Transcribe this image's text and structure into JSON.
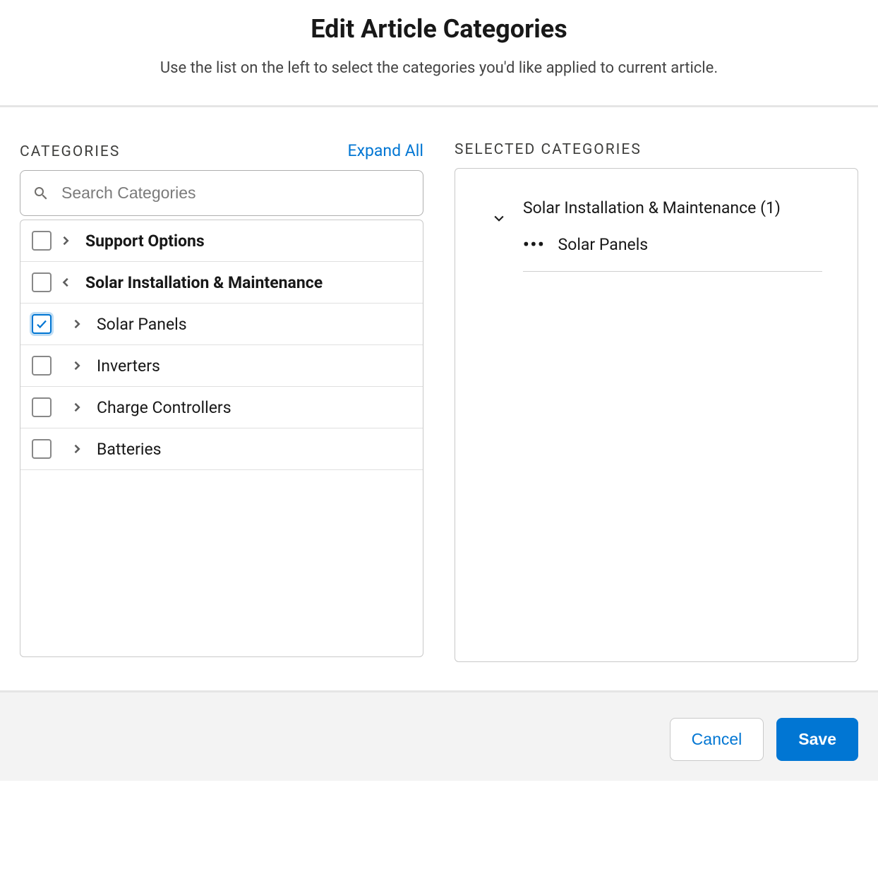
{
  "header": {
    "title": "Edit Article Categories",
    "subtitle": "Use the list on the left to select the categories you'd like applied to current article."
  },
  "left": {
    "title": "CATEGORIES",
    "expand_all": "Expand All",
    "search_placeholder": "Search Categories"
  },
  "tree": {
    "rows": [
      {
        "label": "Support Options",
        "bold": true,
        "checked": false,
        "chevron": "right",
        "indent": 0
      },
      {
        "label": "Solar Installation & Maintenance",
        "bold": true,
        "checked": false,
        "chevron": "left",
        "indent": 0
      },
      {
        "label": "Solar Panels",
        "bold": false,
        "checked": true,
        "chevron": "right",
        "indent": 1
      },
      {
        "label": "Inverters",
        "bold": false,
        "checked": false,
        "chevron": "right",
        "indent": 1
      },
      {
        "label": "Charge Controllers",
        "bold": false,
        "checked": false,
        "chevron": "right",
        "indent": 1
      },
      {
        "label": "Batteries",
        "bold": false,
        "checked": false,
        "chevron": "right",
        "indent": 1
      }
    ]
  },
  "right": {
    "title": "SELECTED CATEGORIES"
  },
  "selected": {
    "group_label": "Solar Installation & Maintenance",
    "count_label": "(1)",
    "child_label": "Solar Panels"
  },
  "footer": {
    "cancel": "Cancel",
    "save": "Save"
  },
  "colors": {
    "link": "#0176d3",
    "primary_button_bg": "#0176d3",
    "primary_button_fg": "#ffffff",
    "secondary_button_fg": "#0176d3",
    "border": "#c9c9c9",
    "divider": "#e5e5e5",
    "footer_bg": "#f3f3f3"
  }
}
